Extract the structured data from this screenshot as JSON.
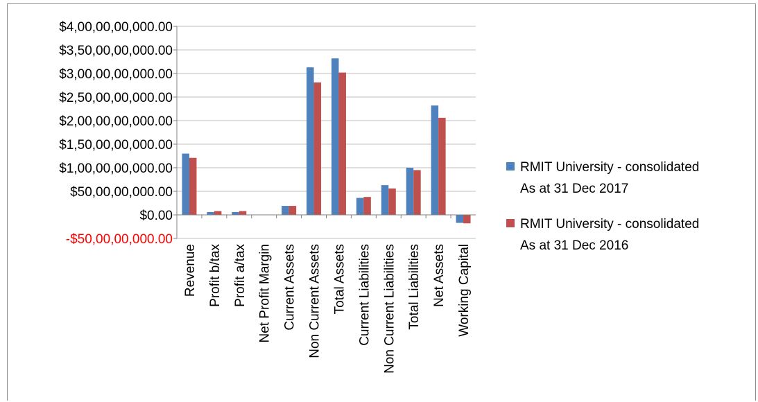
{
  "chart_data": {
    "type": "bar",
    "title": "",
    "xlabel": "",
    "ylabel": "",
    "categories": [
      "Revenue",
      "Profit b/tax",
      "Profit a/tax",
      "Net Profit Margin",
      "Current Assets",
      "Non Current Assets",
      "Total Assets",
      "Current Liabilities",
      "Non Current Liabilities",
      "Total Liabilities",
      "Net Assets",
      "Working Capital"
    ],
    "series": [
      {
        "name": "RMIT University - consolidated As at 31 Dec 2017",
        "color": "#4f81bd",
        "values": [
          1300000000,
          60000000,
          60000000,
          0,
          190000000,
          3130000000,
          3320000000,
          360000000,
          630000000,
          1000000000,
          2320000000,
          -170000000
        ]
      },
      {
        "name": "RMIT University - consolidated As at 31 Dec 2016",
        "color": "#c0504d",
        "values": [
          1210000000,
          80000000,
          80000000,
          0,
          190000000,
          2810000000,
          3020000000,
          380000000,
          560000000,
          950000000,
          2060000000,
          -180000000
        ]
      }
    ],
    "ylim": [
      -500000000,
      4000000000
    ],
    "ytick_labels": [
      "-$50,00,00,000.00",
      "$0.00",
      "$50,00,00,000.00",
      "$1,00,00,00,000.00",
      "$1,50,00,00,000.00",
      "$2,00,00,00,000.00",
      "$2,50,00,00,000.00",
      "$3,00,00,00,000.00",
      "$3,50,00,00,000.00",
      "$4,00,00,00,000.00"
    ],
    "negative_label_color": "#ff0000",
    "grid": true,
    "legend_position": "right"
  },
  "legend": {
    "items": [
      {
        "line1": "RMIT University - consolidated",
        "line2": "As at 31 Dec 2017",
        "color": "#4f81bd"
      },
      {
        "line1": "RMIT University - consolidated",
        "line2": "As at 31 Dec 2016",
        "color": "#c0504d"
      }
    ]
  }
}
